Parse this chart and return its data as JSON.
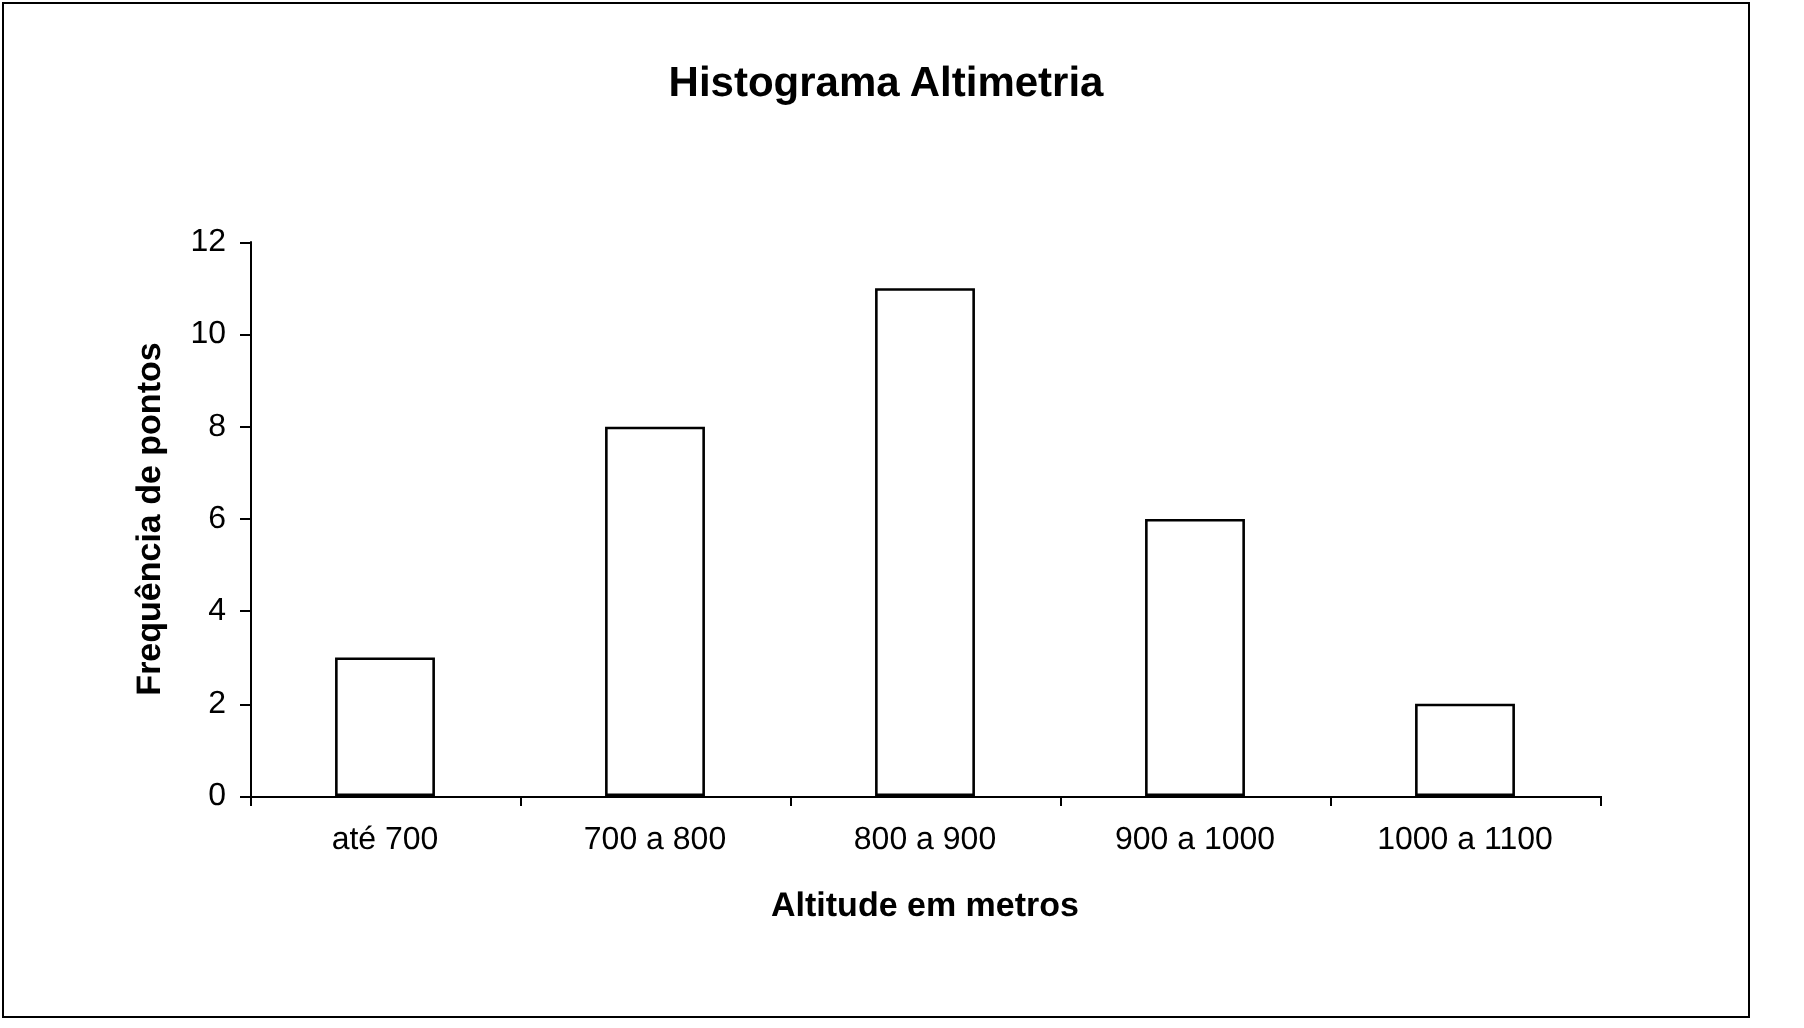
{
  "chart_data": {
    "type": "bar",
    "title": "Histograma Altimetria",
    "xlabel": "Altitude em metros",
    "ylabel": "Frequência de pontos",
    "categories": [
      "até 700",
      "700 a 800",
      "800 a 900",
      "900 a 1000",
      "1000 a 1100"
    ],
    "values": [
      3,
      8,
      11,
      6,
      2
    ],
    "color": "#ffffff",
    "ylim": [
      0,
      12
    ],
    "yticks": [
      0,
      2,
      4,
      6,
      8,
      10,
      12
    ],
    "grid": false
  }
}
